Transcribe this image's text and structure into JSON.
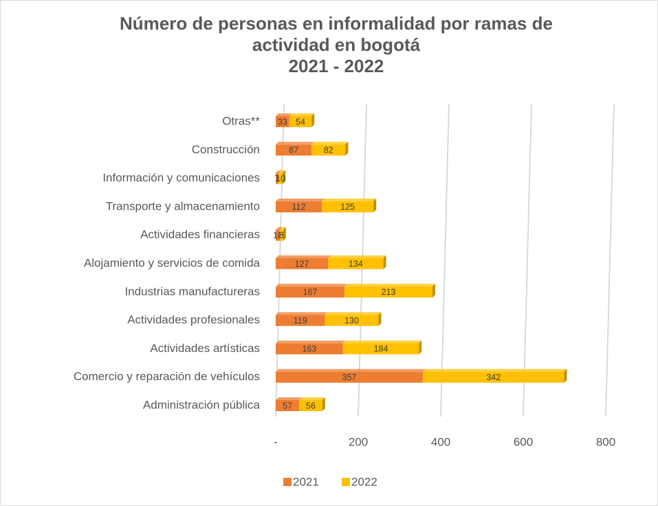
{
  "chart_data": {
    "type": "bar",
    "orientation": "horizontal",
    "stacked": true,
    "title": "Número de personas en informalidad por ramas de actividad en bogotá",
    "subtitle": "2021 - 2022",
    "categories": [
      "Otras**",
      "Construcción",
      "Información y comunicaciones",
      "Transporte y almacenamiento",
      "Actividades financieras",
      "Alojamiento y servicios de comida",
      "Industrias manufactureras",
      "Actividades profesionales",
      "Actividades artísticas",
      "Comercio y reparación de vehículos",
      "Administración pública"
    ],
    "series": [
      {
        "name": "2021",
        "color": "#ED7D31",
        "values": [
          33,
          87,
          7,
          112,
          10,
          127,
          167,
          119,
          163,
          357,
          57
        ]
      },
      {
        "name": "2022",
        "color": "#FFC000",
        "values": [
          54,
          82,
          10,
          125,
          8,
          134,
          213,
          130,
          184,
          342,
          56
        ]
      }
    ],
    "xlim": [
      0,
      800
    ],
    "xticks": [
      {
        "value": 0,
        "label": "-"
      },
      200,
      400,
      600,
      800
    ],
    "grid": true,
    "legend": "bottom"
  }
}
